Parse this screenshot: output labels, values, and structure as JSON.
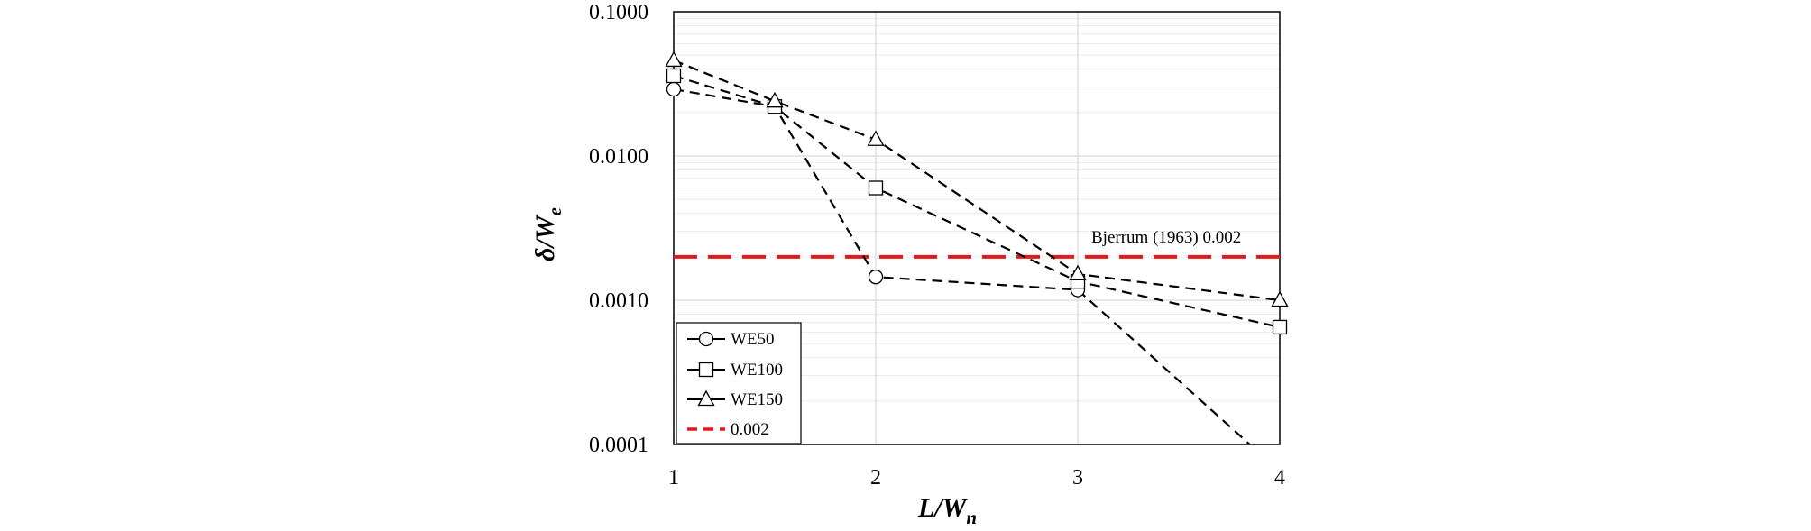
{
  "chart_data": {
    "type": "line",
    "x_scale": "linear",
    "y_scale": "log",
    "xlim": [
      1,
      4
    ],
    "ylim": [
      0.0001,
      0.1
    ],
    "x_ticks": [
      "1",
      "2",
      "3",
      "4"
    ],
    "y_ticks": [
      "0.0001",
      "0.0010",
      "0.0100",
      "0.1000"
    ],
    "xlabel": {
      "main": "L/W",
      "sub": "n"
    },
    "ylabel": {
      "main": "δ/W",
      "sub": "e"
    },
    "grid": true,
    "legend_position": "bottom-left",
    "series": [
      {
        "name": "WE50",
        "marker": "circle",
        "points": [
          [
            1,
            0.029
          ],
          [
            1.5,
            0.022
          ],
          [
            2,
            0.00145
          ],
          [
            3,
            0.00118
          ],
          [
            4,
            6.5e-05
          ]
        ]
      },
      {
        "name": "WE100",
        "marker": "square",
        "points": [
          [
            1,
            0.036
          ],
          [
            1.5,
            0.022
          ],
          [
            2,
            0.006
          ],
          [
            3,
            0.00135
          ],
          [
            4,
            0.00065
          ]
        ]
      },
      {
        "name": "WE150",
        "marker": "triangle",
        "points": [
          [
            1,
            0.046
          ],
          [
            1.5,
            0.024
          ],
          [
            2,
            0.013
          ],
          [
            3,
            0.00152
          ],
          [
            4,
            0.001
          ]
        ]
      }
    ],
    "reference_line": {
      "name": "0.002",
      "value": 0.002,
      "color": "#e31a1c",
      "annotation": "Bjerrum (1963)  0.002"
    }
  }
}
